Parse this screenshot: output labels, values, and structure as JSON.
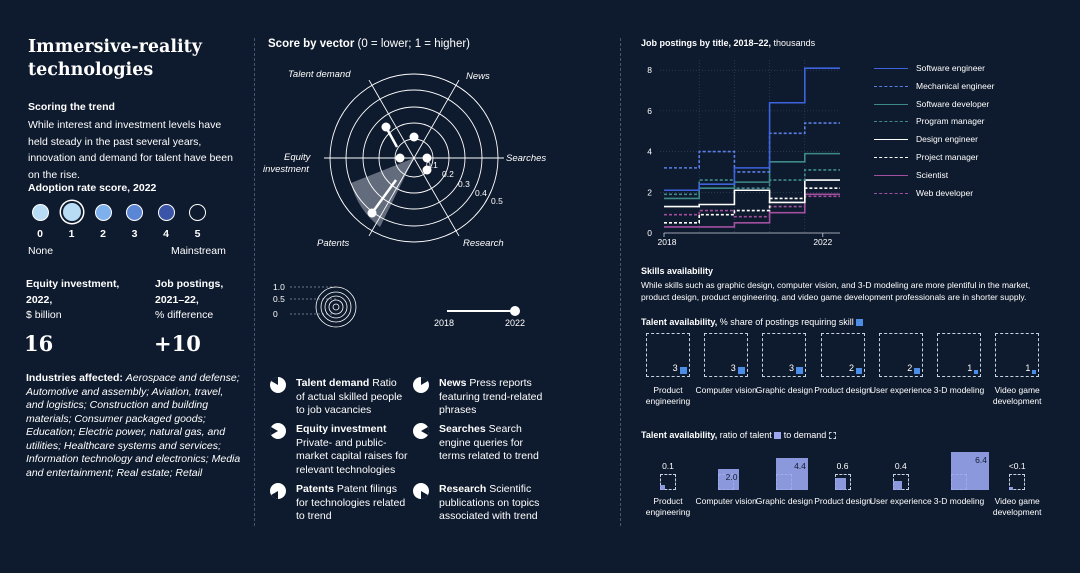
{
  "title": "Immersive-reality technologies",
  "scoring": {
    "heading": "Scoring the trend",
    "body": "While interest and investment levels have held steady in the past several years, innovation and demand for talent have been on the rise."
  },
  "adoption": {
    "heading": "Adoption rate score, 2022",
    "scores": [
      "0",
      "1",
      "2",
      "3",
      "4",
      "5"
    ],
    "selected": 1,
    "low_label": "None",
    "high_label": "Mainstream",
    "colors": [
      "#b9dcf5",
      "#b9dcf5",
      "#7fb0ee",
      "#5b86d6",
      "#3a55a8",
      "#0e1a2d"
    ]
  },
  "equity": {
    "label1": "Equity investment, 2022,",
    "label2": "$ billion",
    "value": "16"
  },
  "jobs": {
    "label1": "Job postings, 2021–22,",
    "label2": "% difference",
    "value": "+10"
  },
  "industries": {
    "label": "Industries affected:",
    "list": "Aerospace and defense; Automotive and assembly; Aviation, travel, and logistics; Construction and building materials; Consumer packaged goods; Education; Electric power, natural gas, and utilities; Healthcare systems and services; Information technology and electronics; Media and entertainment; Real estate; Retail"
  },
  "radar": {
    "title_bold": "Score by vector",
    "title_rest": " (0 = lower; 1 = higher)",
    "axes": [
      "Talent demand",
      "News",
      "Searches",
      "Research",
      "Patents",
      "Equity investment"
    ],
    "rings": [
      "0.1",
      "0.2",
      "0.3",
      "0.4",
      "0.5"
    ],
    "scale_ticks": [
      "1.0",
      "0.5",
      "0"
    ],
    "slider_start": "2018",
    "slider_end": "2022"
  },
  "vectors": [
    {
      "name": "Talent demand",
      "desc": " Ratio of actual skilled people to job vacancies"
    },
    {
      "name": "News",
      "desc": " Press reports featuring trend-related phrases"
    },
    {
      "name": "Equity investment",
      "desc": " Private- and public-market capital raises for relevant technologies"
    },
    {
      "name": "Searches",
      "desc": " Search engine queries for terms related to trend"
    },
    {
      "name": "Patents",
      "desc": " Patent filings for technologies related to trend"
    },
    {
      "name": "Research",
      "desc": " Scientific publications on topics associated with trend"
    }
  ],
  "job_chart": {
    "title_bold": "Job postings by title, 2018–22,",
    "title_rest": " thousands"
  },
  "skills": {
    "heading": "Skills availability",
    "body": "While skills such as graphic design, computer vision, and 3-D modeling are more plentiful in the market, product design, product engineering, and video game development professionals are in shorter supply.",
    "share_title_bold": "Talent availability,",
    "share_title_rest": " % share of postings requiring skill",
    "ratio_title_bold": "Talent availability,",
    "ratio_title_rest1": " ratio of talent",
    "ratio_title_rest2": " to demand",
    "categories": [
      "Product engineering",
      "Computer vision",
      "Graphic design",
      "Product design",
      "User experience",
      "3-D modeling",
      "Video game development"
    ],
    "share_values": [
      "3",
      "3",
      "3",
      "2",
      "2",
      "1",
      "1"
    ],
    "ratio_values": [
      "0.1",
      "2.0",
      "4.4",
      "0.6",
      "0.4",
      "6.4",
      "<0.1"
    ]
  },
  "chart_data": [
    {
      "type": "line",
      "title": "Job postings by title, 2018–22, thousands",
      "x": [
        2018,
        2019,
        2020,
        2021,
        2022
      ],
      "xticks": [
        "2018",
        "2022"
      ],
      "yticks": [
        "0",
        "2",
        "4",
        "6",
        "8"
      ],
      "ylim": [
        0,
        8.5
      ],
      "legend": "right",
      "series": [
        {
          "name": "Software engineer",
          "values": [
            2.1,
            2.4,
            3.2,
            6.4,
            8.1
          ],
          "color": "#3d63dd",
          "dash": false
        },
        {
          "name": "Mechanical engineer",
          "values": [
            3.2,
            4.0,
            3.0,
            4.9,
            5.4
          ],
          "color": "#5a7fe6",
          "dash": true
        },
        {
          "name": "Software developer",
          "values": [
            1.7,
            2.2,
            2.5,
            3.5,
            3.9
          ],
          "color": "#3e8a8a",
          "dash": false
        },
        {
          "name": "Program manager",
          "values": [
            1.9,
            2.6,
            2.2,
            2.6,
            3.1
          ],
          "color": "#3e8a8a",
          "dash": true
        },
        {
          "name": "Design engineer",
          "values": [
            1.3,
            1.4,
            2.1,
            1.5,
            2.6
          ],
          "color": "#ffffff",
          "dash": false
        },
        {
          "name": "Project manager",
          "values": [
            0.5,
            0.9,
            1.1,
            1.7,
            2.2
          ],
          "color": "#ffffff",
          "dash": true
        },
        {
          "name": "Scientist",
          "values": [
            0.3,
            0.3,
            0.5,
            1.0,
            1.9
          ],
          "color": "#a24fa0",
          "dash": false
        },
        {
          "name": "Web developer",
          "values": [
            0.9,
            1.1,
            0.8,
            1.3,
            1.8
          ],
          "color": "#a24fa0",
          "dash": true
        }
      ]
    },
    {
      "type": "bar",
      "title": "Talent availability, % share of postings requiring skill",
      "categories": [
        "Product engineering",
        "Computer vision",
        "Graphic design",
        "Product design",
        "User experience",
        "3-D modeling",
        "Video game development"
      ],
      "values": [
        3,
        3,
        3,
        2,
        2,
        1,
        1
      ]
    },
    {
      "type": "bar",
      "title": "Talent availability, ratio of talent to demand",
      "categories": [
        "Product engineering",
        "Computer vision",
        "Graphic design",
        "Product design",
        "User experience",
        "3-D modeling",
        "Video game development"
      ],
      "values": [
        0.1,
        2.0,
        4.4,
        0.6,
        0.4,
        6.4,
        0.05
      ]
    }
  ]
}
